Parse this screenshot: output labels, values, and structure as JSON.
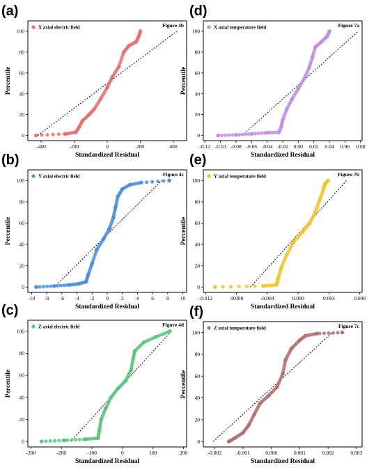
{
  "figure": {
    "background": "#ffffff"
  },
  "chart_data": [
    {
      "type": "scatter",
      "panel": "(a)",
      "legend": "X axial electric field",
      "figure_label": "Figure 4b",
      "xlabel": "Standardized Residual",
      "ylabel": "Percentile",
      "xlim": [
        -480,
        480
      ],
      "ylim": [
        -5,
        110
      ],
      "xticks": [
        -400,
        -200,
        0,
        200,
        400
      ],
      "yticks": [
        0,
        20,
        40,
        60,
        80,
        100
      ],
      "color": "#e8716f",
      "reference_line": {
        "x": [
          -420,
          420
        ],
        "y": [
          0,
          100
        ]
      },
      "curve": [
        [
          -430,
          0
        ],
        [
          -250,
          1.5
        ],
        [
          -190,
          3
        ],
        [
          -170,
          8
        ],
        [
          -150,
          14
        ],
        [
          -110,
          20
        ],
        [
          -80,
          25
        ],
        [
          -40,
          35
        ],
        [
          0,
          46
        ],
        [
          30,
          56
        ],
        [
          70,
          66
        ],
        [
          100,
          80
        ],
        [
          130,
          86
        ],
        [
          175,
          90
        ],
        [
          190,
          95
        ],
        [
          200,
          100
        ]
      ],
      "points": 80
    },
    {
      "type": "scatter",
      "panel": "(b)",
      "legend": "Y axial electric field",
      "figure_label": "Figure 4c",
      "xlabel": "Standardized Residual",
      "ylabel": "Percentile",
      "xlim": [
        -10.5,
        10.5
      ],
      "ylim": [
        -5,
        110
      ],
      "xticks": [
        -10,
        -8,
        -6,
        -4,
        -2,
        0,
        2,
        4,
        6,
        8,
        10
      ],
      "yticks": [
        0,
        20,
        40,
        60,
        80,
        100
      ],
      "color": "#4a8fe0",
      "reference_line": {
        "x": [
          -7,
          7.2
        ],
        "y": [
          0,
          100
        ]
      },
      "curve": [
        [
          -9.4,
          0
        ],
        [
          -7.0,
          1
        ],
        [
          -5.0,
          2
        ],
        [
          -3.8,
          3
        ],
        [
          -2.8,
          5
        ],
        [
          -2.5,
          12
        ],
        [
          -2.0,
          22
        ],
        [
          -1.4,
          35
        ],
        [
          -0.5,
          45
        ],
        [
          0.3,
          55
        ],
        [
          0.8,
          65
        ],
        [
          1.1,
          75
        ],
        [
          1.4,
          85
        ],
        [
          2.0,
          92
        ],
        [
          3.0,
          96
        ],
        [
          4.5,
          98
        ],
        [
          8.2,
          100
        ]
      ],
      "points": 80
    },
    {
      "type": "scatter",
      "panel": "(c)",
      "legend": "Z axial electric field",
      "figure_label": "Figure 4d",
      "xlabel": "Standardized Residual",
      "ylabel": "Percentile",
      "xlim": [
        -310,
        210
      ],
      "ylim": [
        -5,
        110
      ],
      "xticks": [
        -300,
        -200,
        -100,
        0,
        100,
        200
      ],
      "yticks": [
        0,
        20,
        40,
        60,
        80,
        100
      ],
      "color": "#5bc47e",
      "reference_line": {
        "x": [
          -170,
          160
        ],
        "y": [
          0,
          100
        ]
      },
      "curve": [
        [
          -265,
          0
        ],
        [
          -190,
          1
        ],
        [
          -120,
          2
        ],
        [
          -80,
          3
        ],
        [
          -76,
          10
        ],
        [
          -70,
          20
        ],
        [
          -55,
          30
        ],
        [
          -38,
          40
        ],
        [
          -15,
          48
        ],
        [
          10,
          55
        ],
        [
          28,
          65
        ],
        [
          35,
          75
        ],
        [
          40,
          82
        ],
        [
          70,
          90
        ],
        [
          110,
          95
        ],
        [
          155,
          100
        ]
      ],
      "points": 80
    },
    {
      "type": "scatter",
      "panel": "(d)",
      "legend": "X axial temperature field",
      "figure_label": "Figure 7a",
      "xlabel": "Standardized Residual",
      "ylabel": "Percentile",
      "xlim": [
        -0.122,
        0.082
      ],
      "ylim": [
        -5,
        110
      ],
      "xticks": [
        -0.12,
        -0.1,
        -0.08,
        -0.06,
        -0.04,
        -0.02,
        0.0,
        0.02,
        0.04,
        0.06,
        0.08
      ],
      "xtick_labels": [
        "-0.12",
        "-0.10",
        "-0.08",
        "-0.06",
        "-0.04",
        "-0.02",
        "0.00",
        "0.02",
        "0.04",
        "0.06",
        "0.08"
      ],
      "yticks": [
        0,
        20,
        40,
        60,
        80,
        100
      ],
      "color": "#c28fe3",
      "reference_line": {
        "x": [
          -0.072,
          0.077
        ],
        "y": [
          0,
          100
        ]
      },
      "curve": [
        [
          -0.103,
          0
        ],
        [
          -0.08,
          0.5
        ],
        [
          -0.06,
          1.5
        ],
        [
          -0.04,
          2.5
        ],
        [
          -0.025,
          3
        ],
        [
          -0.022,
          8
        ],
        [
          -0.02,
          15
        ],
        [
          -0.015,
          25
        ],
        [
          -0.008,
          35
        ],
        [
          0.0,
          45
        ],
        [
          0.008,
          55
        ],
        [
          0.014,
          65
        ],
        [
          0.018,
          75
        ],
        [
          0.022,
          85
        ],
        [
          0.03,
          90
        ],
        [
          0.037,
          95
        ],
        [
          0.04,
          100
        ]
      ],
      "points": 80
    },
    {
      "type": "scatter",
      "panel": "(e)",
      "legend": "Y axial temperature field",
      "figure_label": "Figure 7b",
      "xlabel": "Standardized Residual",
      "ylabel": "Percentile",
      "xlim": [
        -0.0123,
        0.0083
      ],
      "ylim": [
        -5,
        110
      ],
      "xticks": [
        -0.012,
        -0.008,
        -0.004,
        0.0,
        0.004,
        0.008
      ],
      "xtick_labels": [
        "-0.012",
        "-0.008",
        "-0.004",
        "0.000",
        "0.004",
        "0.008"
      ],
      "yticks": [
        0,
        20,
        40,
        60,
        80,
        100
      ],
      "color": "#f5c52a",
      "reference_line": {
        "x": [
          -0.0062,
          0.0063
        ],
        "y": [
          0,
          100
        ]
      },
      "curve": [
        [
          -0.0108,
          0
        ],
        [
          -0.0045,
          1
        ],
        [
          -0.0028,
          2
        ],
        [
          -0.0026,
          8
        ],
        [
          -0.0022,
          18
        ],
        [
          -0.0015,
          30
        ],
        [
          -0.0006,
          42
        ],
        [
          0.0006,
          52
        ],
        [
          0.0015,
          60
        ],
        [
          0.0022,
          70
        ],
        [
          0.0028,
          82
        ],
        [
          0.0033,
          92
        ],
        [
          0.0035,
          97
        ],
        [
          0.0039,
          100
        ]
      ],
      "points": 80
    },
    {
      "type": "scatter",
      "panel": "(f)",
      "legend": "Z axial temperature field",
      "figure_label": "Figure 7c",
      "xlabel": "Standardized Residual",
      "ylabel": "Percentile",
      "xlim": [
        -0.0024,
        0.0032
      ],
      "ylim": [
        -5,
        110
      ],
      "xticks": [
        -0.002,
        -0.001,
        0.0,
        0.001,
        0.002,
        0.003
      ],
      "xtick_labels": [
        "-0.002",
        "-0.001",
        "0.000",
        "0.001",
        "0.002",
        "0.003"
      ],
      "yticks": [
        0,
        20,
        40,
        60,
        80,
        100
      ],
      "color": "#b5716e",
      "reference_line": {
        "x": [
          -0.00205,
          0.00215
        ],
        "y": [
          0,
          100
        ]
      },
      "curve": [
        [
          -0.0015,
          0
        ],
        [
          -0.0013,
          3
        ],
        [
          -0.001,
          8
        ],
        [
          -0.0008,
          15
        ],
        [
          -0.0006,
          25
        ],
        [
          -0.0004,
          35
        ],
        [
          -0.0001,
          42
        ],
        [
          0.0002,
          50
        ],
        [
          0.0004,
          62
        ],
        [
          0.0005,
          75
        ],
        [
          0.0007,
          85
        ],
        [
          0.001,
          93
        ],
        [
          0.0012,
          97
        ],
        [
          0.0016,
          99
        ],
        [
          0.0025,
          100
        ]
      ],
      "points": 80
    }
  ]
}
